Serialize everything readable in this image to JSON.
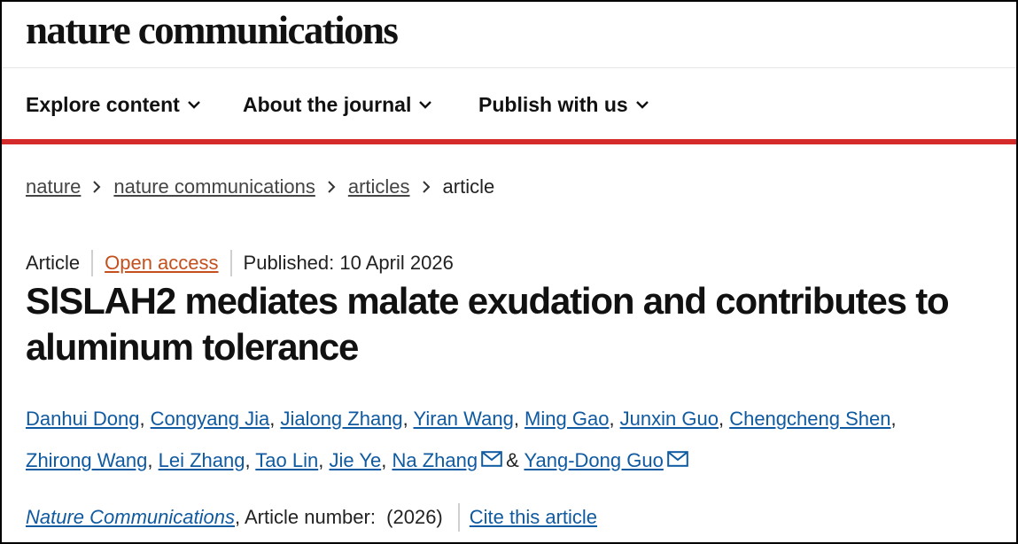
{
  "header": {
    "logo": "nature communications"
  },
  "nav": {
    "items": [
      {
        "label": "Explore content"
      },
      {
        "label": "About the journal"
      },
      {
        "label": "Publish with us"
      }
    ]
  },
  "breadcrumb": {
    "items": [
      "nature",
      "nature communications",
      "articles"
    ],
    "current": "article"
  },
  "article": {
    "type": "Article",
    "access": "Open access",
    "published": "Published: 10 April 2026",
    "title": "SlSLAH2 mediates malate exudation and contributes to aluminum tolerance",
    "authors": [
      "Danhui Dong",
      "Congyang Jia",
      "Jialong Zhang",
      "Yiran Wang",
      "Ming Gao",
      "Junxin Guo",
      "Chengcheng Shen",
      "Zhirong Wang",
      "Lei Zhang",
      "Tao Lin",
      "Jie Ye",
      "Na Zhang",
      "Yang-Dong Guo"
    ],
    "journal": "Nature Communications",
    "article_number": ", Article number:  (2026)",
    "cite_label": "Cite this article"
  },
  "colors": {
    "accent_red": "#d42a2a",
    "link_blue": "#0f5aa0",
    "open_access_orange": "#c4501e"
  },
  "icons": {
    "nav_chevron": "chevron-down-icon",
    "breadcrumb_sep": "chevron-right-icon",
    "email": "envelope-icon"
  }
}
